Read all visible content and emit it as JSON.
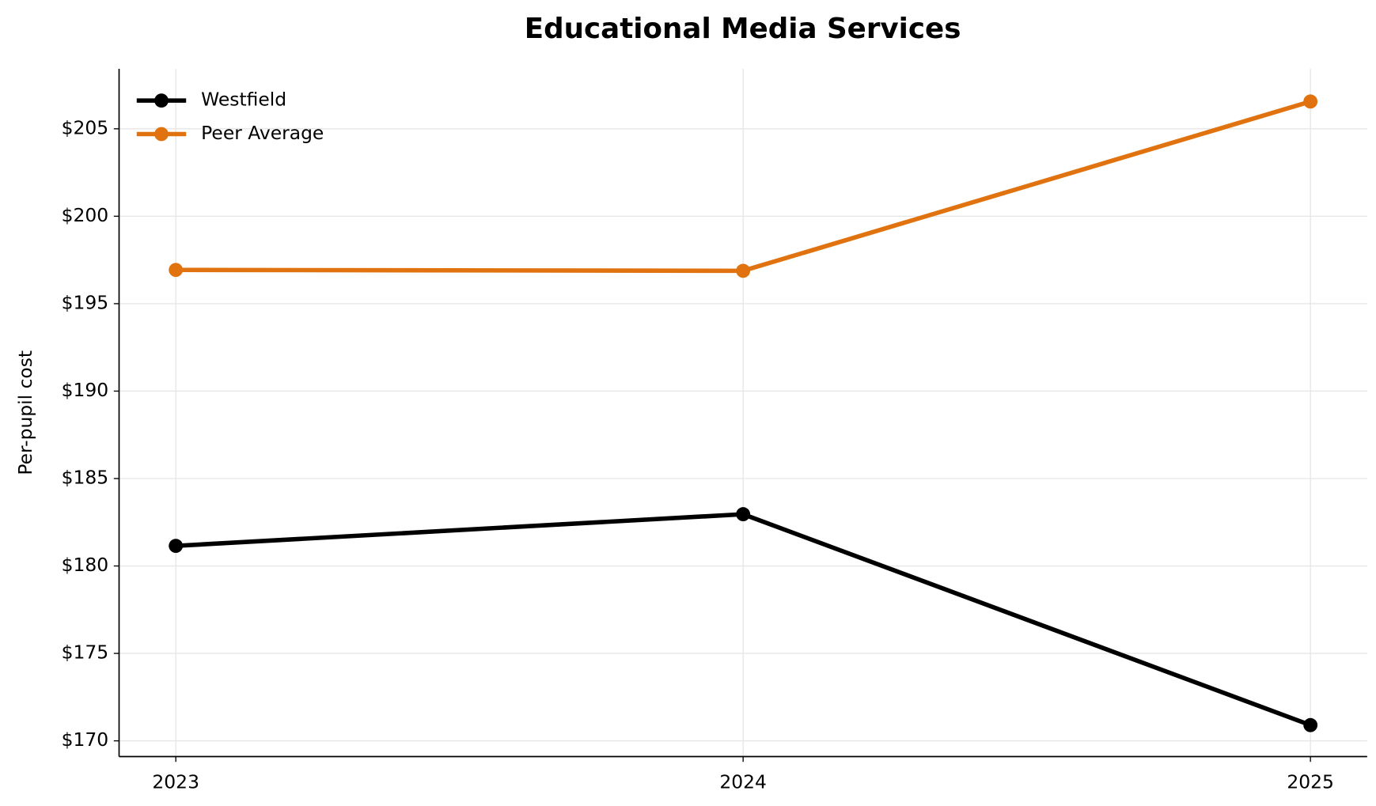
{
  "chart_data": {
    "type": "line",
    "title": "Educational Media Services",
    "y_label": "Per-pupil cost",
    "x": [
      2023,
      2024,
      2025
    ],
    "series": [
      {
        "name": "Westfield",
        "color": "#000000",
        "values": [
          181.15,
          182.96,
          170.9
        ]
      },
      {
        "name": "Peer Average",
        "color": "#e0730f",
        "values": [
          196.93,
          196.88,
          206.56
        ]
      }
    ],
    "xlim": [
      2022.9,
      2025.1
    ],
    "xticks": [
      2023,
      2024,
      2025
    ],
    "ylim": [
      169.1,
      208.43
    ],
    "yticks": [
      {
        "value": 170,
        "label": "$170"
      },
      {
        "value": 175,
        "label": "$175"
      },
      {
        "value": 180,
        "label": "$180"
      },
      {
        "value": 185,
        "label": "$185"
      },
      {
        "value": 190,
        "label": "$190"
      },
      {
        "value": 195,
        "label": "$195"
      },
      {
        "value": 200,
        "label": "$200"
      },
      {
        "value": 205,
        "label": "$205"
      }
    ],
    "grid": true,
    "legend": "upper left"
  }
}
